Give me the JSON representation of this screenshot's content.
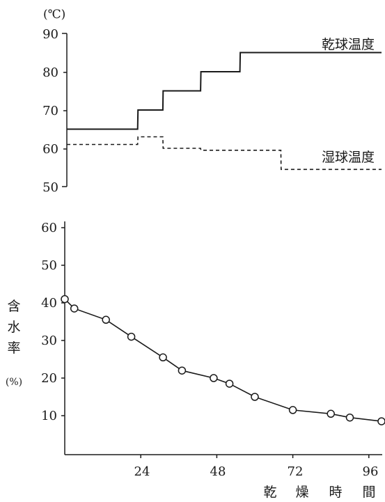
{
  "chart_data": [
    {
      "type": "line",
      "unit_label": "(℃)",
      "x": [
        0,
        22.5,
        22.6,
        30.5,
        30.6,
        42.5,
        42.6,
        55.0,
        55.1,
        68.0,
        68.1,
        100
      ],
      "ylim": [
        50,
        90
      ],
      "xlim": [
        0,
        100
      ],
      "yticks": [
        "90",
        "80",
        "70",
        "60",
        "50"
      ],
      "series": [
        {
          "name": "乾球温度",
          "values": [
            65,
            65,
            70,
            70,
            75,
            75,
            80,
            80,
            85,
            85,
            85,
            85
          ]
        },
        {
          "name": "湿球温度",
          "values": [
            61,
            61,
            63,
            63,
            60,
            60,
            59.5,
            59.5,
            59.5,
            59.5,
            54.5,
            54.5
          ]
        }
      ]
    },
    {
      "type": "line",
      "ylabel_chars": [
        "含",
        "水",
        "率",
        "(%)"
      ],
      "xlabel_chars": [
        "乾",
        "燥",
        "時",
        "間"
      ],
      "xlim": [
        0,
        100
      ],
      "ylim": [
        0,
        62
      ],
      "xticks": [
        "24",
        "48",
        "72",
        "96"
      ],
      "xtick_values": [
        24,
        48,
        72,
        96
      ],
      "yticks": [
        "60",
        "50",
        "40",
        "30",
        "20",
        "10"
      ],
      "series": [
        {
          "x": [
            0,
            3,
            13,
            21,
            31,
            37,
            47,
            52,
            60,
            72,
            84,
            90,
            100
          ],
          "values": [
            41,
            38.5,
            35.5,
            31,
            25.5,
            22,
            20,
            18.5,
            15,
            11.5,
            10.5,
            9.5,
            8.5
          ]
        }
      ]
    }
  ]
}
